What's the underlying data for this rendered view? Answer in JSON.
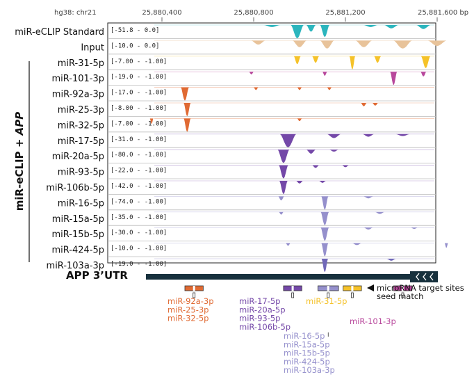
{
  "genome_label": "hg38: chr21",
  "coordinate_ticks": [
    {
      "label": "25,880,400",
      "pos": 25880400
    },
    {
      "label": "25,880,800",
      "pos": 25880800
    },
    {
      "label": "25,881,200",
      "pos": 25881200
    },
    {
      "label": "25,881,600 bp",
      "pos": 25881600
    }
  ],
  "group_label": "miR-eCLIP + APP",
  "group_label_main": "miR-eCLIP +",
  "group_label_em": "APP",
  "colors": {
    "cyan": "#2bb5bd",
    "tan": "#e8c39a",
    "yellow": "#f5c229",
    "magenta": "#b8489c",
    "orange": "#e06a33",
    "purple": "#7448a8",
    "lavender": "#9590cc",
    "utr": "#17313d"
  },
  "tracks": [
    {
      "name": "miR-eCLIP Standard",
      "range": "[-51.8 - 0.0]",
      "color": "#2bb5bd",
      "peaks": [
        [
          25880880,
          70,
          0.15
        ],
        [
          25880990,
          55,
          1.0
        ],
        [
          25881050,
          40,
          0.5
        ],
        [
          25881110,
          40,
          0.9
        ],
        [
          25881310,
          60,
          0.15
        ],
        [
          25881400,
          60,
          0.25
        ],
        [
          25881540,
          60,
          0.3
        ]
      ]
    },
    {
      "name": "Input",
      "range": "[-10.0 - 0.0]",
      "color": "#e8c39a",
      "peaks": [
        [
          25880820,
          60,
          0.3
        ],
        [
          25881000,
          60,
          0.5
        ],
        [
          25881120,
          60,
          0.6
        ],
        [
          25881280,
          70,
          0.5
        ],
        [
          25881450,
          80,
          0.6
        ],
        [
          25881600,
          80,
          0.4
        ]
      ]
    },
    {
      "name": "miR-31-5p",
      "range": "[-7.00 - -1.00]",
      "color": "#f5c229",
      "peaks": [
        [
          25880990,
          30,
          0.6
        ],
        [
          25881070,
          30,
          0.5
        ],
        [
          25881230,
          25,
          1.0
        ],
        [
          25881340,
          30,
          0.5
        ],
        [
          25881550,
          40,
          0.9
        ]
      ]
    },
    {
      "name": "miR-101-3p",
      "range": "[-19.0 - -1.00]",
      "color": "#b8489c",
      "peaks": [
        [
          25880790,
          20,
          0.2
        ],
        [
          25881110,
          20,
          0.3
        ],
        [
          25881410,
          30,
          1.0
        ],
        [
          25881540,
          25,
          0.35
        ]
      ]
    },
    {
      "name": "miR-92a-3p",
      "range": "[-17.0 - -1.00]",
      "color": "#e06a33",
      "peaks": [
        [
          25880500,
          35,
          1.0
        ],
        [
          25880810,
          20,
          0.2
        ],
        [
          25881000,
          20,
          0.2
        ],
        [
          25881130,
          20,
          0.2
        ]
      ]
    },
    {
      "name": "miR-25-3p",
      "range": "[-8.00 - -1.00]",
      "color": "#e06a33",
      "peaks": [
        [
          25880510,
          30,
          1.0
        ],
        [
          25881280,
          25,
          0.25
        ],
        [
          25881330,
          25,
          0.2
        ]
      ]
    },
    {
      "name": "miR-32-5p",
      "range": "[-7.00 - -1.00]",
      "color": "#e06a33",
      "peaks": [
        [
          25880355,
          15,
          0.4
        ],
        [
          25880510,
          30,
          1.0
        ],
        [
          25881000,
          20,
          0.2
        ]
      ]
    },
    {
      "name": "miR-17-5p",
      "range": "[-31.0 - -1.00]",
      "color": "#7448a8",
      "peaks": [
        [
          25880950,
          70,
          1.0
        ],
        [
          25881150,
          60,
          0.3
        ],
        [
          25881300,
          50,
          0.2
        ],
        [
          25881450,
          60,
          0.15
        ]
      ]
    },
    {
      "name": "miR-20a-5p",
      "range": "[-80.0 - -1.00]",
      "color": "#7448a8",
      "peaks": [
        [
          25880930,
          50,
          1.0
        ],
        [
          25881050,
          40,
          0.3
        ],
        [
          25881150,
          40,
          0.15
        ]
      ]
    },
    {
      "name": "miR-93-5p",
      "range": "[-22.0 - -1.00]",
      "color": "#7448a8",
      "peaks": [
        [
          25880930,
          40,
          1.0
        ],
        [
          25881070,
          30,
          0.2
        ],
        [
          25881200,
          30,
          0.15
        ]
      ]
    },
    {
      "name": "miR-106b-5p",
      "range": "[-42.0 - -1.00]",
      "color": "#7448a8",
      "peaks": [
        [
          25880930,
          35,
          1.0
        ],
        [
          25881000,
          30,
          0.2
        ],
        [
          25881100,
          30,
          0.15
        ]
      ]
    },
    {
      "name": "miR-16-5p",
      "range": "[-74.0 - -1.00]",
      "color": "#9590cc",
      "peaks": [
        [
          25880920,
          25,
          0.3
        ],
        [
          25881110,
          30,
          1.0
        ],
        [
          25881300,
          40,
          0.15
        ]
      ]
    },
    {
      "name": "miR-15a-5p",
      "range": "[-35.0 - -1.00]",
      "color": "#9590cc",
      "peaks": [
        [
          25880920,
          20,
          0.2
        ],
        [
          25881110,
          35,
          1.0
        ],
        [
          25881350,
          40,
          0.15
        ]
      ]
    },
    {
      "name": "miR-15b-5p",
      "range": "[-30.0 - -1.00]",
      "color": "#9590cc",
      "peaks": [
        [
          25881110,
          35,
          1.0
        ],
        [
          25881300,
          40,
          0.15
        ],
        [
          25881500,
          30,
          0.1
        ]
      ]
    },
    {
      "name": "miR-424-5p",
      "range": "[-10.0 - -1.00]",
      "color": "#9590cc",
      "peaks": [
        [
          25880950,
          20,
          0.2
        ],
        [
          25881110,
          30,
          1.0
        ],
        [
          25881250,
          40,
          0.15
        ],
        [
          25881640,
          15,
          0.35
        ]
      ]
    },
    {
      "name": "miR-103a-3p",
      "range": "[-19.0 - -1.00]",
      "color": "#7068b8",
      "peaks": [
        [
          25881110,
          28,
          1.0
        ],
        [
          25881400,
          40,
          0.15
        ]
      ]
    }
  ],
  "utr_label": "APP 3’UTR",
  "site_legend": {
    "line1": "microRNA target sites",
    "line2": "seed match"
  },
  "sites": [
    {
      "start": 25880500,
      "end": 25880580,
      "color": "#e06a33",
      "labels": [
        "miR-92a-3p",
        "miR-25-3p",
        "miR-32-5p"
      ]
    },
    {
      "start": 25880930,
      "end": 25881010,
      "color": "#7448a8",
      "labels": [
        "miR-17-5p",
        "miR-20a-5p",
        "miR-93-5p",
        "miR-106b-5p"
      ]
    },
    {
      "start": 25881080,
      "end": 25881170,
      "color": "#9590cc",
      "labels": [
        "miR-16-5p",
        "miR-15a-5p",
        "miR-15b-5p",
        "miR-424-5p",
        "miR-103a-3p"
      ]
    },
    {
      "start": 25881190,
      "end": 25881270,
      "color": "#f5c229",
      "labels": [
        "miR-31-5p"
      ]
    },
    {
      "start": 25881410,
      "end": 25881490,
      "color": "#b8489c",
      "labels": [
        "miR-101-3p"
      ]
    }
  ]
}
